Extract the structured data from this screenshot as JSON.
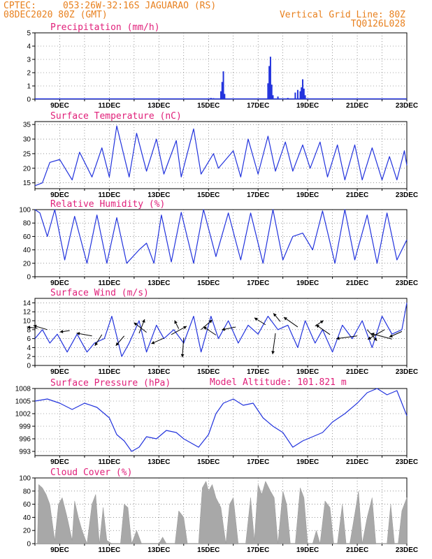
{
  "header": {
    "source": "CPTEC:",
    "location": "053:26W-32:16S  JAGUARAO (RS)",
    "run": "08DEC2020 80Z (GMT)",
    "grid_line": "Vertical Grid Line: 80Z",
    "code": "TQ0126L028",
    "model_altitude": "Model Altitude: 101.821 m"
  },
  "colors": {
    "header": "#e8801e",
    "title": "#e0207a",
    "line": "#2233dd",
    "bar": "#2233dd",
    "cloud": "#a8a8a8"
  },
  "chart_data": [
    {
      "name": "precip",
      "type": "bar",
      "title": "Precipitation (mm/h)",
      "ylim": [
        0,
        5
      ],
      "yticks": [
        0,
        1,
        2,
        3,
        4,
        5
      ],
      "xlabels": [
        "9DEC",
        "11DEC",
        "13DEC",
        "15DEC",
        "17DEC",
        "19DEC",
        "21DEC",
        "23DEC"
      ],
      "x_days": [
        1,
        3,
        5,
        7,
        9,
        11,
        13,
        15
      ],
      "bars": [
        [
          7.0,
          0.05
        ],
        [
          7.1,
          0.1
        ],
        [
          7.2,
          0.08
        ],
        [
          7.5,
          0.6
        ],
        [
          7.55,
          1.3
        ],
        [
          7.6,
          2.1
        ],
        [
          7.65,
          0.4
        ],
        [
          9.4,
          1.2
        ],
        [
          9.45,
          2.5
        ],
        [
          9.5,
          3.2
        ],
        [
          9.55,
          1.1
        ],
        [
          9.6,
          0.3
        ],
        [
          9.8,
          0.2
        ],
        [
          10.2,
          0.1
        ],
        [
          10.5,
          0.5
        ],
        [
          10.6,
          0.7
        ],
        [
          10.7,
          0.6
        ],
        [
          10.75,
          0.9
        ],
        [
          10.8,
          1.5
        ],
        [
          10.85,
          0.8
        ],
        [
          10.9,
          0.3
        ]
      ]
    },
    {
      "name": "temp",
      "type": "line",
      "title": "Surface Temperature (nC)",
      "ylim": [
        13,
        36
      ],
      "yticks": [
        15,
        20,
        25,
        30,
        35
      ],
      "xlabels": [
        "9DEC",
        "11DEC",
        "13DEC",
        "15DEC",
        "17DEC",
        "19DEC",
        "21DEC",
        "23DEC"
      ],
      "x_days": [
        1,
        3,
        5,
        7,
        9,
        11,
        13,
        15
      ],
      "x": [
        0,
        0.3,
        0.6,
        1,
        1.5,
        1.8,
        2.3,
        2.7,
        3.0,
        3.3,
        3.8,
        4.1,
        4.5,
        4.9,
        5.2,
        5.7,
        5.9,
        6.4,
        6.7,
        7.2,
        7.4,
        8.0,
        8.3,
        8.6,
        9.0,
        9.4,
        9.7,
        10.1,
        10.4,
        10.8,
        11.1,
        11.5,
        11.8,
        12.2,
        12.5,
        12.9,
        13.2,
        13.6,
        14.0,
        14.3,
        14.6,
        14.9,
        15.0
      ],
      "y": [
        14,
        15,
        22,
        23,
        16,
        25.5,
        17,
        27,
        17,
        34.5,
        17,
        32,
        19,
        30,
        18,
        29.5,
        17,
        33.5,
        18,
        25,
        20,
        26,
        17,
        30,
        18,
        31,
        19,
        29,
        19,
        28,
        20,
        29,
        17,
        28,
        16,
        28,
        16,
        27,
        16,
        24,
        16,
        26,
        21
      ]
    },
    {
      "name": "rh",
      "type": "line",
      "title": "Relative Humidity (%)",
      "ylim": [
        0,
        100
      ],
      "yticks": [
        0,
        20,
        40,
        60,
        80,
        100
      ],
      "xlabels": [
        "9DEC",
        "11DEC",
        "13DEC",
        "15DEC",
        "17DEC",
        "19DEC",
        "21DEC",
        "23DEC"
      ],
      "x_days": [
        1,
        3,
        5,
        7,
        9,
        11,
        13,
        15
      ],
      "x": [
        0,
        0.2,
        0.5,
        0.8,
        1.2,
        1.6,
        2.1,
        2.5,
        2.9,
        3.3,
        3.7,
        4.2,
        4.5,
        4.8,
        5.1,
        5.5,
        5.9,
        6.4,
        6.8,
        7.3,
        7.8,
        8.3,
        8.7,
        9.2,
        9.6,
        10.0,
        10.4,
        10.8,
        11.2,
        11.6,
        12.1,
        12.5,
        12.9,
        13.4,
        13.8,
        14.2,
        14.6,
        15.0
      ],
      "y": [
        100,
        95,
        60,
        100,
        25,
        90,
        20,
        92,
        20,
        88,
        20,
        40,
        50,
        20,
        92,
        22,
        96,
        20,
        100,
        30,
        95,
        25,
        95,
        20,
        100,
        25,
        60,
        65,
        40,
        98,
        20,
        100,
        25,
        92,
        20,
        95,
        25,
        55
      ]
    },
    {
      "name": "wind",
      "type": "line",
      "title": "Surface Wind (m/s)",
      "ylim": [
        0,
        15
      ],
      "yticks": [
        0,
        2,
        4,
        6,
        8,
        10,
        12,
        14
      ],
      "xlabels": [
        "9DEC",
        "11DEC",
        "13DEC",
        "15DEC",
        "17DEC",
        "19DEC",
        "21DEC",
        "23DEC"
      ],
      "x_days": [
        1,
        3,
        5,
        7,
        9,
        11,
        13,
        15
      ],
      "x": [
        0,
        0.3,
        0.6,
        0.9,
        1.3,
        1.7,
        2.1,
        2.4,
        2.8,
        3.1,
        3.5,
        3.8,
        4.2,
        4.5,
        4.9,
        5.2,
        5.6,
        6.0,
        6.4,
        6.7,
        7.1,
        7.4,
        7.8,
        8.2,
        8.6,
        9.0,
        9.4,
        9.8,
        10.2,
        10.6,
        10.9,
        11.3,
        11.6,
        12.0,
        12.4,
        12.8,
        13.2,
        13.6,
        14.0,
        14.4,
        14.8,
        15.0
      ],
      "y": [
        6,
        8,
        5,
        7,
        3,
        7,
        3,
        5,
        6,
        11,
        2,
        5,
        10,
        3,
        9,
        6,
        8,
        5,
        11,
        3,
        11,
        6,
        10,
        5,
        9,
        7,
        11,
        8,
        9,
        4,
        10,
        5,
        8,
        3,
        9,
        6,
        10,
        4,
        11,
        7,
        8,
        14
      ],
      "arrows": [
        [
          0.1,
          8.3,
          -15,
          -2
        ],
        [
          0.5,
          8,
          -20,
          -6
        ],
        [
          1.4,
          7.8,
          -14,
          2
        ],
        [
          2.3,
          6.6,
          -22,
          -4
        ],
        [
          2.7,
          6.9,
          -10,
          16
        ],
        [
          3.6,
          6.6,
          -12,
          14
        ],
        [
          4.2,
          7.2,
          8,
          -20
        ],
        [
          4.5,
          7.4,
          -18,
          -14
        ],
        [
          5.2,
          6.1,
          -18,
          8
        ],
        [
          5.5,
          6.9,
          22,
          -12
        ],
        [
          5.8,
          8.2,
          -6,
          -12
        ],
        [
          6.0,
          6.2,
          -2,
          28
        ],
        [
          6.7,
          8,
          16,
          -14
        ],
        [
          7.3,
          6.8,
          -18,
          -12
        ],
        [
          8.1,
          8.6,
          -20,
          4
        ],
        [
          9.3,
          9.1,
          -16,
          -10
        ],
        [
          9.7,
          7.2,
          -4,
          30
        ],
        [
          9.9,
          9.8,
          -10,
          -12
        ],
        [
          10.6,
          8.6,
          -20,
          -14
        ],
        [
          11.3,
          8.8,
          12,
          -8
        ],
        [
          11.9,
          6.9,
          -20,
          -14
        ],
        [
          13.0,
          6.6,
          -30,
          4
        ],
        [
          13.4,
          8,
          14,
          16
        ],
        [
          14.1,
          8,
          -24,
          14
        ],
        [
          14.4,
          5.9,
          -30,
          -8
        ],
        [
          14.8,
          7.6,
          -18,
          8
        ]
      ]
    },
    {
      "name": "pressure",
      "type": "line",
      "title": "Surface Pressure (hPa)",
      "ylim": [
        992,
        1008
      ],
      "yticks": [
        993,
        996,
        999,
        1002,
        1005,
        1008
      ],
      "xlabels": [
        "9DEC",
        "11DEC",
        "13DEC",
        "15DEC",
        "17DEC",
        "19DEC",
        "21DEC",
        "23DEC"
      ],
      "x_days": [
        1,
        3,
        5,
        7,
        9,
        11,
        13,
        15
      ],
      "x": [
        0,
        0.5,
        1.0,
        1.5,
        2.0,
        2.5,
        3.0,
        3.3,
        3.6,
        3.9,
        4.2,
        4.5,
        4.9,
        5.3,
        5.7,
        6.0,
        6.3,
        6.6,
        7.0,
        7.3,
        7.6,
        8.0,
        8.4,
        8.8,
        9.2,
        9.6,
        10.0,
        10.4,
        10.8,
        11.2,
        11.6,
        12.0,
        12.5,
        13.0,
        13.4,
        13.8,
        14.2,
        14.6,
        15.0
      ],
      "y": [
        1005,
        1005.5,
        1004.5,
        1003,
        1004.5,
        1003.5,
        1001,
        997,
        995.5,
        993,
        994,
        996.5,
        996,
        998,
        997.5,
        996,
        995,
        994,
        997,
        1002,
        1004.5,
        1005.5,
        1004,
        1004.5,
        1001,
        999,
        997.5,
        994,
        995.5,
        996.5,
        997.5,
        1000,
        1002,
        1004.5,
        1007,
        1008,
        1006.5,
        1007.5,
        1001.5
      ]
    },
    {
      "name": "cloud",
      "type": "area",
      "title": "Cloud Cover (%)",
      "ylim": [
        0,
        100
      ],
      "yticks": [
        0,
        20,
        40,
        60,
        80,
        100
      ],
      "xlabels": [
        "9DEC",
        "11DEC",
        "13DEC",
        "15DEC",
        "17DEC",
        "19DEC",
        "21DEC",
        "23DEC"
      ],
      "x_days": [
        1,
        3,
        5,
        7,
        9,
        11,
        13,
        15
      ],
      "x": [
        0,
        0.1,
        0.15,
        0.3,
        0.45,
        0.6,
        0.8,
        0.95,
        1.1,
        1.3,
        1.5,
        1.6,
        1.75,
        1.9,
        2.1,
        2.3,
        2.45,
        2.6,
        2.75,
        2.9,
        3.1,
        3.3,
        3.45,
        3.6,
        3.75,
        3.9,
        4.1,
        4.3,
        4.5,
        4.65,
        4.8,
        5.0,
        5.15,
        5.3,
        5.5,
        5.65,
        5.8,
        6.0,
        6.15,
        6.3,
        6.45,
        6.6,
        6.75,
        6.9,
        7.0,
        7.15,
        7.3,
        7.5,
        7.7,
        7.85,
        8.0,
        8.2,
        8.35,
        8.5,
        8.7,
        8.85,
        9.0,
        9.15,
        9.3,
        9.5,
        9.65,
        9.8,
        10.0,
        10.15,
        10.3,
        10.5,
        10.7,
        10.85,
        11.0,
        11.2,
        11.35,
        11.5,
        11.7,
        11.9,
        12.05,
        12.2,
        12.4,
        12.55,
        12.7,
        12.9,
        13.05,
        13.2,
        13.4,
        13.6,
        13.75,
        13.9,
        14.05,
        14.2,
        14.35,
        14.5,
        14.65,
        14.8,
        15.0
      ],
      "y": [
        0,
        0,
        90,
        85,
        75,
        60,
        5,
        60,
        70,
        40,
        5,
        65,
        40,
        20,
        0,
        60,
        75,
        0,
        55,
        5,
        0,
        0,
        0,
        60,
        55,
        0,
        20,
        0,
        0,
        0,
        0,
        0,
        10,
        0,
        0,
        0,
        50,
        40,
        0,
        0,
        0,
        0,
        85,
        95,
        80,
        90,
        70,
        55,
        0,
        60,
        70,
        0,
        0,
        0,
        70,
        5,
        90,
        75,
        95,
        80,
        70,
        0,
        80,
        60,
        0,
        0,
        85,
        70,
        0,
        0,
        20,
        0,
        65,
        55,
        0,
        0,
        60,
        0,
        0,
        45,
        80,
        0,
        40,
        70,
        0,
        0,
        0,
        0,
        60,
        0,
        0,
        50,
        70
      ]
    }
  ]
}
